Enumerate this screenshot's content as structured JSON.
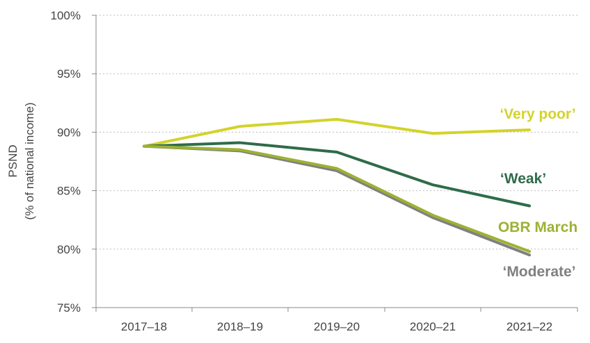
{
  "chart_data": {
    "type": "line",
    "categories": [
      "2017–18",
      "2018–19",
      "2019–20",
      "2020–21",
      "2021–22"
    ],
    "series": [
      {
        "name": "‘Very poor’",
        "values": [
          88.8,
          90.5,
          91.1,
          89.9,
          90.2
        ],
        "color": "#d3d32b"
      },
      {
        "name": "‘Weak’",
        "values": [
          88.8,
          89.1,
          88.3,
          85.5,
          83.7
        ],
        "color": "#2f6b4a"
      },
      {
        "name": "OBR March",
        "values": [
          88.8,
          88.5,
          86.9,
          82.9,
          79.8
        ],
        "color": "#9cb233"
      },
      {
        "name": "‘Moderate’",
        "values": [
          88.8,
          88.4,
          86.7,
          82.7,
          79.5
        ],
        "color": "#808080"
      }
    ],
    "ylabel_line1": "PSND",
    "ylabel_line2": "(% of national income)",
    "xlabel": "",
    "ylim": [
      75,
      100
    ],
    "yticks": [
      "75%",
      "80%",
      "85%",
      "90%",
      "95%",
      "100%"
    ],
    "ytick_values": [
      75,
      80,
      85,
      90,
      95,
      100
    ],
    "grid": "horizontal dotted",
    "legend": "direct labels at right of lines"
  }
}
